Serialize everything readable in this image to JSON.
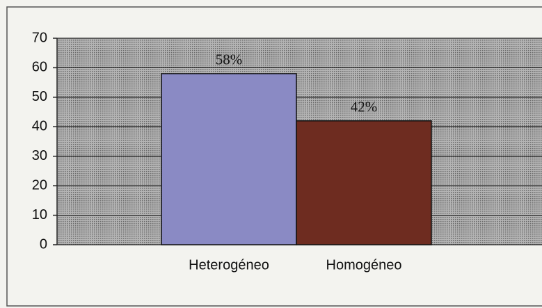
{
  "chart_data": {
    "type": "bar",
    "categories": [
      "Heterogéneo",
      "Homogéneo"
    ],
    "values": [
      58,
      42
    ],
    "value_labels": [
      "58%",
      "42%"
    ],
    "colors": [
      "#8a8ac4",
      "#6e2c20"
    ],
    "ylim": [
      0,
      70
    ],
    "yticks": [
      0,
      10,
      20,
      30,
      40,
      50,
      60,
      70
    ],
    "grid": true
  }
}
